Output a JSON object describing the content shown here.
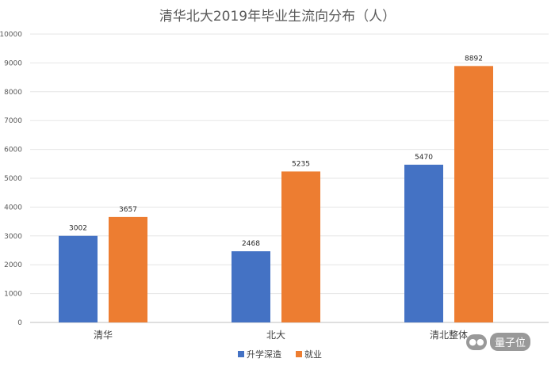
{
  "chart_data": {
    "type": "bar",
    "title": "清华北大2019年毕业生流向分布（人）",
    "categories": [
      "清华",
      "北大",
      "清北整体"
    ],
    "series": [
      {
        "name": "升学深造",
        "values": [
          3002,
          2468,
          5470
        ],
        "color": "#4472C4"
      },
      {
        "name": "就业",
        "values": [
          3657,
          5235,
          8892
        ],
        "color": "#ED7D31"
      }
    ],
    "ylim": [
      0,
      10000
    ],
    "yticks": [
      0,
      1000,
      2000,
      3000,
      4000,
      5000,
      6000,
      7000,
      8000,
      9000,
      10000
    ],
    "grid": true,
    "legend": "bottom"
  },
  "watermark": {
    "icon": "wechat-icon",
    "text": "量子位"
  }
}
